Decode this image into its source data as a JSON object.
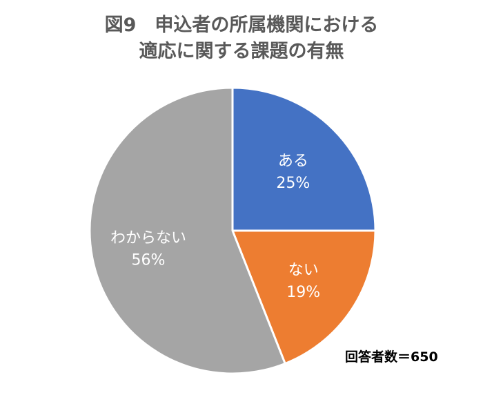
{
  "chart_data": {
    "type": "pie",
    "title_lines": [
      "図9　申込者の所属機関における",
      "適応に関する課題の有無"
    ],
    "slices": [
      {
        "label": "ある",
        "value": 25,
        "value_label": "25%",
        "color": "#4472C4"
      },
      {
        "label": "ない",
        "value": 19,
        "value_label": "19%",
        "color": "#ED7D31"
      },
      {
        "label": "わからない",
        "value": 56,
        "value_label": "56%",
        "color": "#A5A5A5"
      }
    ],
    "note": "回答者数＝650"
  }
}
